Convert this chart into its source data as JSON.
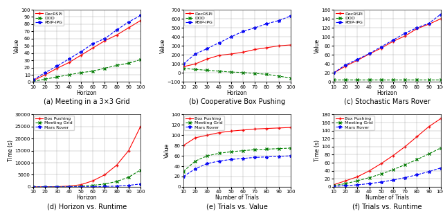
{
  "horizons": [
    10,
    20,
    30,
    40,
    50,
    60,
    70,
    80,
    90,
    100
  ],
  "trials": [
    10,
    20,
    30,
    40,
    50,
    60,
    70,
    80,
    90,
    100
  ],
  "panel_a": {
    "xlabel": "Horizon",
    "ylabel": "Value",
    "ylim": [
      0,
      100
    ],
    "yticks": [
      0,
      10,
      20,
      30,
      40,
      50,
      60,
      70,
      80,
      90,
      100
    ],
    "DecRSPI": [
      2,
      10,
      19,
      27,
      37,
      47,
      57,
      65,
      75,
      85
    ],
    "DOD": [
      1,
      4,
      7,
      10,
      13,
      15,
      19,
      23,
      26,
      31
    ],
    "PBIP_IPG": [
      3,
      13,
      22,
      32,
      42,
      53,
      60,
      72,
      83,
      92
    ]
  },
  "panel_b": {
    "xlabel": "Horizon",
    "ylabel": "Value",
    "ylim": [
      -100,
      700
    ],
    "yticks": [
      -100,
      0,
      100,
      200,
      300,
      400,
      500,
      600,
      700
    ],
    "DecRSPI": [
      70,
      100,
      155,
      195,
      210,
      230,
      260,
      280,
      300,
      310
    ],
    "DOD": [
      50,
      40,
      30,
      20,
      10,
      5,
      -5,
      -15,
      -35,
      -55
    ],
    "PBIP_IPG": [
      100,
      210,
      270,
      335,
      400,
      460,
      500,
      545,
      580,
      630
    ]
  },
  "panel_c": {
    "xlabel": "Horizon",
    "ylabel": "Value",
    "ylim": [
      0,
      160
    ],
    "yticks": [
      0,
      20,
      40,
      60,
      80,
      100,
      120,
      140,
      160
    ],
    "DecRSPI": [
      20,
      35,
      48,
      62,
      75,
      90,
      102,
      118,
      128,
      140
    ],
    "DOD": [
      5,
      5,
      5,
      5,
      5,
      5,
      5,
      5,
      5,
      5
    ],
    "PBIP_IPG": [
      20,
      38,
      50,
      63,
      78,
      93,
      108,
      120,
      130,
      150
    ]
  },
  "panel_d": {
    "xlabel": "Horizon",
    "ylabel": "Time (s)",
    "ylim": [
      0,
      30000
    ],
    "yticks": [
      0,
      5000,
      10000,
      15000,
      20000,
      25000,
      30000
    ],
    "BoxPushing": [
      10,
      30,
      100,
      300,
      900,
      2500,
      5000,
      9000,
      15000,
      25000
    ],
    "MeetingGrid": [
      5,
      15,
      40,
      100,
      250,
      600,
      1200,
      2200,
      4000,
      7000
    ],
    "MarsRover": [
      2,
      5,
      10,
      20,
      40,
      80,
      160,
      300,
      600,
      1200
    ]
  },
  "panel_e": {
    "xlabel": "Number of Trials",
    "ylabel": "Value",
    "ylim": [
      0,
      140
    ],
    "yticks": [
      0,
      20,
      40,
      60,
      80,
      100,
      120,
      140
    ],
    "BoxPushing": [
      80,
      95,
      100,
      105,
      108,
      110,
      112,
      113,
      114,
      115
    ],
    "MeetingGrid": [
      30,
      50,
      60,
      65,
      68,
      70,
      72,
      73,
      74,
      75
    ],
    "MarsRover": [
      20,
      35,
      45,
      50,
      53,
      55,
      57,
      58,
      59,
      60
    ]
  },
  "panel_f": {
    "xlabel": "Number of Trials",
    "ylabel": "Time (s)",
    "ylim": [
      0,
      180
    ],
    "yticks": [
      0,
      20,
      40,
      60,
      80,
      100,
      120,
      140,
      160,
      180
    ],
    "BoxPushing": [
      5,
      15,
      25,
      40,
      58,
      78,
      100,
      125,
      150,
      170
    ],
    "MeetingGrid": [
      3,
      8,
      15,
      23,
      32,
      43,
      55,
      68,
      82,
      97
    ],
    "MarsRover": [
      1,
      3,
      5,
      8,
      12,
      17,
      23,
      30,
      38,
      47
    ]
  },
  "captions": [
    "(a) Meeting in a 3×3 Grid",
    "(b) Cooperative Box Pushing",
    "(c) Stochastic Mars Rover",
    "(d) Horizon vs. Runtime",
    "(e) Trials vs. Value",
    "(f) Trials vs. Runtime"
  ],
  "colors": {
    "DecRSPI": "#ff0000",
    "DOD": "#008000",
    "PBIP_IPG": "#0000ff",
    "BoxPushing": "#ff0000",
    "MeetingGrid": "#008000",
    "MarsRover": "#0000ff"
  },
  "linestyles": {
    "DecRSPI": "-",
    "DOD": "--",
    "PBIP_IPG": "--",
    "BoxPushing": "-",
    "MeetingGrid": "--",
    "MarsRover": "--"
  },
  "markers": {
    "DecRSPI": "+",
    "DOD": "x",
    "PBIP_IPG": "*",
    "BoxPushing": "+",
    "MeetingGrid": "x",
    "MarsRover": "*"
  }
}
